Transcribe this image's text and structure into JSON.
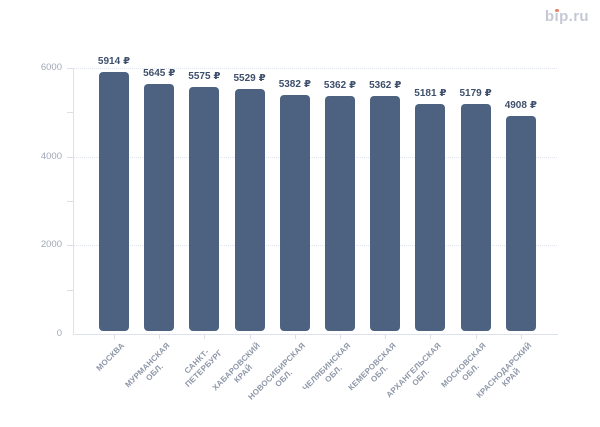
{
  "logo": {
    "text": "bip.ru",
    "color": "#c6c9d5",
    "dot_color": "#e8826a"
  },
  "chart_data": {
    "type": "bar",
    "title": "",
    "categories": [
      "МОСКВА",
      "МУРМАНСКАЯ\nОБЛ.",
      "САНКТ-\nПЕТЕРБУРГ",
      "ХАБАРОВСКИЙ\nКРАЙ",
      "НОВОСИБИРСКАЯ\nОБЛ.",
      "ЧЕЛЯБИНСКАЯ\nОБЛ.",
      "КЕМЕРОВСКАЯ\nОБЛ.",
      "АРХАНГЕЛЬСКАЯ\nОБЛ.",
      "МОСКОВСКАЯ\nОБЛ.",
      "КРАСНОДАРСКИЙ\nКРАЙ"
    ],
    "values": [
      5914,
      5645,
      5575,
      5529,
      5382,
      5362,
      5362,
      5181,
      5179,
      4908
    ],
    "value_suffix": "₽",
    "xlabel": "",
    "ylabel": "",
    "ylim": [
      0,
      6000
    ],
    "y_major_ticks": [
      0,
      2000,
      4000,
      6000
    ],
    "y_minor_tick_step": 1000,
    "grid": "horizontal dotted lines at major ticks",
    "legend_position": "none",
    "colors": {
      "bar": "#4d6281",
      "value_label": "#3f506c",
      "y_tick_label": "#a0a7b6",
      "category_label": "#8e97a8",
      "axis_line": "#dde1e9",
      "tick_mark": "#dbdfe8",
      "grid_line": "#e0e4ed"
    }
  }
}
